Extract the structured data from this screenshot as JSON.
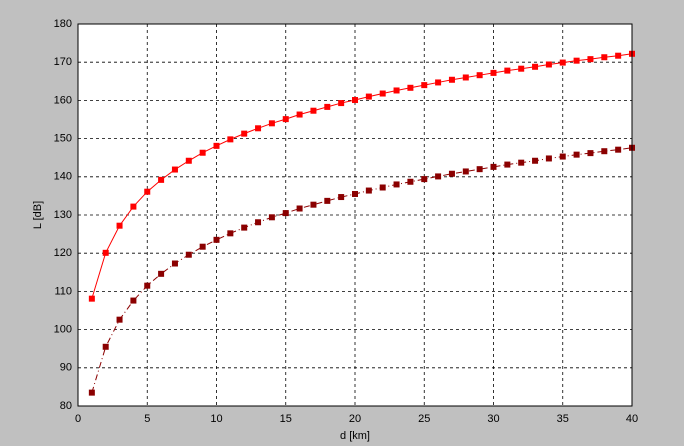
{
  "chart_data": {
    "type": "line",
    "xlabel": "d [km]",
    "ylabel": "L [dB]",
    "x": [
      1,
      2,
      3,
      4,
      5,
      6,
      7,
      8,
      9,
      10,
      11,
      12,
      13,
      14,
      15,
      16,
      17,
      18,
      19,
      20,
      21,
      22,
      23,
      24,
      25,
      26,
      27,
      28,
      29,
      30,
      31,
      32,
      33,
      34,
      35,
      36,
      37,
      38,
      39,
      40
    ],
    "series": [
      {
        "color": "#ff0000",
        "linestyle": "solid",
        "values": [
          108.1,
          120.1,
          127.2,
          132.2,
          136.1,
          139.2,
          141.9,
          144.2,
          146.3,
          148.1,
          149.8,
          151.3,
          152.7,
          154.0,
          155.1,
          156.3,
          157.3,
          158.3,
          159.3,
          160.1,
          161.0,
          161.8,
          162.6,
          163.3,
          164.0,
          164.7,
          165.4,
          166.0,
          166.6,
          167.2,
          167.8,
          168.3,
          168.8,
          169.4,
          169.9,
          170.4,
          170.8,
          171.3,
          171.7,
          172.2
        ]
      },
      {
        "color": "#8b0000",
        "linestyle": "dashdot",
        "values": [
          83.5,
          95.5,
          102.6,
          107.6,
          111.5,
          114.6,
          117.3,
          119.6,
          121.7,
          123.5,
          125.2,
          126.7,
          128.1,
          129.4,
          130.5,
          131.7,
          132.7,
          133.7,
          134.7,
          135.5,
          136.4,
          137.2,
          138.0,
          138.7,
          139.4,
          140.1,
          140.8,
          141.4,
          142.0,
          142.6,
          143.2,
          143.7,
          144.2,
          144.8,
          145.3,
          145.8,
          146.2,
          146.7,
          147.1,
          147.6
        ]
      }
    ],
    "xlim": [
      0,
      40
    ],
    "xticks": [
      0,
      5,
      10,
      15,
      20,
      25,
      30,
      35,
      40
    ],
    "ylim": [
      80,
      180
    ],
    "yticks": [
      80,
      90,
      100,
      110,
      120,
      130,
      140,
      150,
      160,
      170,
      180
    ],
    "grid": true
  }
}
